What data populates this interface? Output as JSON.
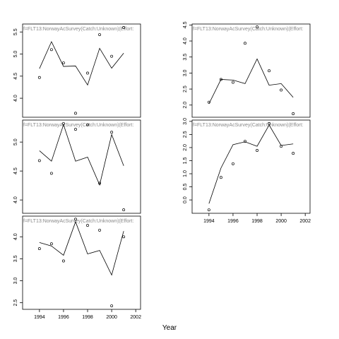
{
  "chart_data": [
    {
      "type": "line",
      "title": "f=FLT13:NorwayAcSurvey(Catch:Unknown)(Effort:",
      "x": [
        1994,
        1995,
        1996,
        1997,
        1998,
        1999,
        2000,
        2001
      ],
      "series": [
        {
          "style": "line",
          "color": "#000000",
          "values": [
            4.67,
            5.28,
            4.72,
            4.73,
            4.3,
            5.13,
            4.68,
            5.02
          ]
        },
        {
          "style": "points",
          "color": "#000000",
          "values": [
            4.47,
            5.1,
            4.8,
            3.66,
            4.57,
            5.44,
            4.95,
            5.6
          ]
        }
      ],
      "xlim": [
        1992.6,
        2002.4
      ],
      "ylim": [
        3.57,
        5.68
      ],
      "yticks": [
        {
          "value": 4,
          "label": "4.0"
        },
        4.5,
        {
          "value": 5,
          "label": "5.0"
        },
        5.5
      ]
    },
    {
      "type": "line",
      "title": "f=FLT13:NorwayAcSurvey(Catch:Unknown)(Effort:",
      "x": [
        1994,
        1995,
        1996,
        1997,
        1998,
        1999,
        2000,
        2001
      ],
      "series": [
        {
          "style": "line",
          "color": "#000000",
          "values": [
            2.04,
            2.8,
            2.78,
            2.67,
            3.44,
            2.62,
            2.67,
            2.24
          ]
        },
        {
          "style": "points",
          "color": "#000000",
          "values": [
            2.09,
            2.8,
            2.71,
            3.93,
            4.44,
            3.07,
            2.47,
            1.73
          ]
        }
      ],
      "xlim": [
        1992.6,
        2002.4
      ],
      "ylim": [
        1.62,
        4.53
      ],
      "yticks": [
        {
          "value": 2,
          "label": "2.0"
        },
        2.5,
        {
          "value": 3,
          "label": "3.0"
        },
        3.5,
        {
          "value": 4,
          "label": "4.0"
        },
        4.5
      ]
    },
    {
      "type": "line",
      "title": "f=FLT13:NorwayAcSurvey(Catch:Unknown)(Effort:",
      "x": [
        1994,
        1995,
        1996,
        1997,
        1998,
        1999,
        2000,
        2001
      ],
      "series": [
        {
          "style": "line",
          "color": "#000000",
          "values": [
            4.85,
            4.67,
            5.3,
            4.67,
            4.74,
            4.26,
            5.13,
            4.59
          ]
        },
        {
          "style": "points",
          "color": "#000000",
          "values": [
            4.68,
            4.46,
            5.32,
            5.22,
            5.3,
            4.29,
            5.17,
            3.83
          ]
        }
      ],
      "xlim": [
        1992.6,
        2002.4
      ],
      "ylim": [
        3.77,
        5.38
      ],
      "yticks": [
        {
          "value": 4,
          "label": "4.0"
        },
        4.5,
        {
          "value": 5,
          "label": "5.0"
        }
      ]
    },
    {
      "type": "line",
      "title": "f=FLT13:NorwayAcSurvey(Catch:Unknown)(Effort:",
      "x": [
        1994,
        1995,
        1996,
        1997,
        1998,
        1999,
        2000,
        2001
      ],
      "series": [
        {
          "style": "line",
          "color": "#000000",
          "values": [
            -0.14,
            1.22,
            2.11,
            2.22,
            2.05,
            2.86,
            2.08,
            2.14
          ]
        },
        {
          "style": "points",
          "color": "#000000",
          "values": [
            -0.38,
            0.86,
            1.38,
            2.24,
            1.89,
            2.92,
            2.05,
            1.78
          ]
        }
      ],
      "xlim": [
        1992.6,
        2002.4
      ],
      "ylim": [
        -0.51,
        3.05
      ],
      "xticks": [
        1994,
        1996,
        1998,
        2000,
        2002
      ],
      "yticks": [
        {
          "value": 0,
          "label": "0.0"
        },
        0.5,
        {
          "value": 1,
          "label": "1.0"
        },
        1.5,
        {
          "value": 2,
          "label": "2.0"
        },
        2.5,
        {
          "value": 3,
          "label": "3.0"
        }
      ]
    },
    {
      "type": "line",
      "title": "f=FLT13:NorwayAcSurvey(Catch:Unknown)(Effort:",
      "x": [
        1994,
        1995,
        1996,
        1997,
        1998,
        1999,
        2000,
        2001
      ],
      "series": [
        {
          "style": "line",
          "color": "#000000",
          "values": [
            3.87,
            3.79,
            3.58,
            4.34,
            3.61,
            3.69,
            3.13,
            4.13
          ]
        },
        {
          "style": "points",
          "color": "#000000",
          "values": [
            3.73,
            3.84,
            3.45,
            4.4,
            4.26,
            4.15,
            2.43,
            4.0
          ]
        }
      ],
      "xlim": [
        1992.6,
        2002.4
      ],
      "ylim": [
        2.35,
        4.47
      ],
      "xticks": [
        1994,
        1996,
        1998,
        2000,
        2002
      ],
      "yticks": [
        2.5,
        {
          "value": 3,
          "label": "3.0"
        },
        3.5,
        {
          "value": 4,
          "label": "4.0"
        }
      ]
    }
  ],
  "xlabel": "Year"
}
